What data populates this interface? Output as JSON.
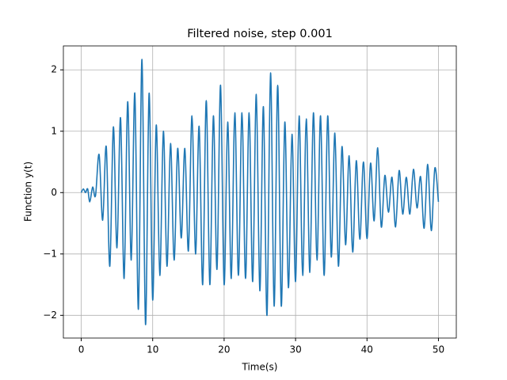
{
  "chart_data": {
    "type": "line",
    "title": "Filtered noise, step 0.001",
    "x_label": "Time(s)",
    "y_label": "Function y(t)",
    "color": "#1f77b4",
    "grid": true,
    "xlim": [
      -2.5,
      52.5
    ],
    "ylim": [
      -2.37,
      2.39
    ],
    "xticks": [
      0,
      10,
      20,
      30,
      40,
      50
    ],
    "yticks": [
      {
        "value": -2,
        "label": "−2"
      },
      {
        "value": -1,
        "label": "−1"
      },
      0,
      1,
      2
    ],
    "x": [
      0,
      0.3,
      0.6,
      0.9,
      1.2,
      1.6,
      2.0,
      2.5,
      3,
      3.5,
      4,
      4.5,
      5,
      5.5,
      6,
      6.5,
      7,
      7.5,
      8,
      8.5,
      9,
      9.5,
      10,
      10.5,
      11,
      11.5,
      12,
      12.5,
      13,
      13.5,
      14,
      14.5,
      15,
      15.5,
      16,
      16.5,
      17,
      17.5,
      18,
      18.5,
      19,
      19.5,
      20,
      20.5,
      21,
      21.5,
      22,
      22.5,
      23,
      23.5,
      24,
      24.5,
      25,
      25.5,
      26,
      26.5,
      27,
      27.5,
      28,
      28.5,
      29,
      29.5,
      30,
      30.5,
      31,
      31.5,
      32,
      32.5,
      33,
      33.5,
      34,
      34.5,
      35,
      35.5,
      36,
      36.5,
      37,
      37.5,
      38,
      38.5,
      39,
      39.5,
      40,
      40.5,
      41,
      41.5,
      42,
      42.5,
      43,
      43.5,
      44,
      44.5,
      45,
      45.5,
      46,
      46.5,
      47,
      47.5,
      48,
      48.5,
      49,
      49.5,
      50
    ],
    "values": [
      0,
      0.06,
      0.0,
      0.06,
      -0.15,
      0.09,
      -0.05,
      0.62,
      -0.45,
      0.75,
      -1.2,
      1.07,
      -0.9,
      1.22,
      -1.4,
      1.48,
      -1.1,
      1.62,
      -1.9,
      2.17,
      -2.15,
      1.62,
      -1.75,
      1.1,
      -1.35,
      1.0,
      -1.2,
      0.8,
      -1.1,
      0.72,
      -0.74,
      0.72,
      -0.95,
      1.25,
      -1.0,
      1.08,
      -1.5,
      1.5,
      -1.5,
      1.25,
      -1.25,
      1.75,
      -1.5,
      1.15,
      -1.4,
      1.3,
      -1.35,
      1.3,
      -1.4,
      1.3,
      -1.45,
      1.6,
      -1.6,
      1.4,
      -2.0,
      1.95,
      -1.85,
      1.75,
      -1.85,
      1.15,
      -1.55,
      0.95,
      -1.45,
      1.25,
      -1.35,
      1.2,
      -1.3,
      1.3,
      -1.1,
      1.25,
      -1.35,
      1.25,
      -1.05,
      0.97,
      -1.2,
      0.75,
      -0.85,
      0.6,
      -0.97,
      0.52,
      -0.76,
      0.5,
      -0.75,
      0.48,
      -0.46,
      0.73,
      -0.56,
      0.28,
      -0.32,
      0.25,
      -0.56,
      0.36,
      -0.35,
      0.25,
      -0.35,
      0.38,
      -0.25,
      0.26,
      -0.58,
      0.46,
      -0.62,
      0.4,
      -0.15
    ]
  }
}
